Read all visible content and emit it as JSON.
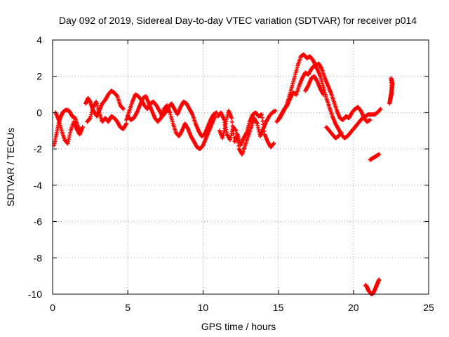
{
  "chart_data": {
    "type": "scatter",
    "title": "Day 092 of 2019, Sidereal Day-to-day VTEC variation (SDTVAR) for receiver p014",
    "xlabel": "GPS time / hours",
    "ylabel": "SDTVAR / TECUs",
    "xlim": [
      0,
      25
    ],
    "ylim": [
      -10,
      4
    ],
    "xticks": [
      0,
      5,
      10,
      15,
      20,
      25
    ],
    "yticks": [
      -10,
      -8,
      -6,
      -4,
      -2,
      0,
      2,
      4
    ],
    "grid": true,
    "marker": "+",
    "colors": {
      "points": "#ff0000",
      "axes": "#000000",
      "grid": "#a0a0a0"
    },
    "series": [
      {
        "name": "SDTVAR",
        "curves": [
          [
            [
              0.1,
              -1.8
            ],
            [
              0.25,
              -1.2
            ],
            [
              0.4,
              -0.6
            ],
            [
              0.55,
              -0.2
            ],
            [
              0.7,
              0.05
            ],
            [
              0.9,
              0.15
            ],
            [
              1.1,
              0.1
            ],
            [
              1.3,
              -0.2
            ],
            [
              1.5,
              -0.3
            ],
            [
              1.7,
              -0.8
            ],
            [
              1.9,
              -1.0
            ]
          ],
          [
            [
              0.2,
              0.0
            ],
            [
              0.4,
              -0.4
            ],
            [
              0.6,
              -1.0
            ],
            [
              0.8,
              -1.5
            ],
            [
              1.0,
              -1.7
            ],
            [
              1.2,
              -1.0
            ],
            [
              1.4,
              -0.5
            ],
            [
              1.6,
              -0.9
            ],
            [
              1.8,
              -1.2
            ],
            [
              2.0,
              -0.8
            ]
          ],
          [
            [
              2.2,
              0.5
            ],
            [
              2.35,
              0.8
            ],
            [
              2.5,
              0.6
            ],
            [
              2.65,
              0.2
            ],
            [
              2.8,
              0.0
            ],
            [
              2.95,
              -0.2
            ],
            [
              3.1,
              0.1
            ],
            [
              3.3,
              0.5
            ],
            [
              3.5,
              0.7
            ],
            [
              3.7,
              1.0
            ],
            [
              3.9,
              1.2
            ],
            [
              4.1,
              1.1
            ],
            [
              4.3,
              0.9
            ],
            [
              4.5,
              0.4
            ],
            [
              4.7,
              0.2
            ]
          ],
          [
            [
              2.3,
              -0.5
            ],
            [
              2.5,
              -0.3
            ],
            [
              2.7,
              0.3
            ],
            [
              2.9,
              0.6
            ],
            [
              3.1,
              0.0
            ],
            [
              3.3,
              -0.5
            ],
            [
              3.5,
              -0.3
            ],
            [
              3.7,
              -0.5
            ],
            [
              3.9,
              -0.2
            ],
            [
              4.1,
              -0.3
            ],
            [
              4.3,
              -0.5
            ],
            [
              4.5,
              -0.8
            ],
            [
              4.7,
              -0.9
            ],
            [
              4.9,
              -0.6
            ]
          ],
          [
            [
              4.9,
              -0.4
            ],
            [
              5.1,
              0.1
            ],
            [
              5.3,
              0.6
            ],
            [
              5.5,
              1.0
            ],
            [
              5.7,
              0.9
            ],
            [
              5.9,
              0.7
            ],
            [
              6.1,
              0.4
            ],
            [
              6.3,
              0.2
            ],
            [
              6.5,
              0.5
            ],
            [
              6.7,
              0.6
            ],
            [
              6.9,
              0.4
            ],
            [
              7.1,
              0.1
            ],
            [
              7.3,
              -0.2
            ],
            [
              7.5,
              0.0
            ],
            [
              7.7,
              0.3
            ],
            [
              7.9,
              0.5
            ],
            [
              8.1,
              0.2
            ],
            [
              8.3,
              -0.1
            ],
            [
              8.5,
              0.3
            ],
            [
              8.7,
              0.6
            ],
            [
              8.9,
              0.5
            ],
            [
              9.1,
              0.2
            ],
            [
              9.3,
              -0.1
            ],
            [
              9.5,
              -0.6
            ],
            [
              9.7,
              -1.0
            ],
            [
              9.9,
              -1.3
            ],
            [
              10.1,
              -1.2
            ],
            [
              10.3,
              -0.8
            ],
            [
              10.5,
              -0.4
            ],
            [
              10.7,
              -0.1
            ],
            [
              10.9,
              0.0
            ]
          ],
          [
            [
              5.0,
              -0.2
            ],
            [
              5.2,
              -0.4
            ],
            [
              5.4,
              -0.3
            ],
            [
              5.6,
              0.0
            ],
            [
              5.8,
              0.4
            ],
            [
              6.0,
              0.8
            ],
            [
              6.2,
              0.9
            ],
            [
              6.4,
              0.5
            ],
            [
              6.6,
              0.1
            ],
            [
              6.8,
              -0.3
            ],
            [
              7.0,
              -0.5
            ],
            [
              7.2,
              -0.3
            ],
            [
              7.4,
              0.2
            ],
            [
              7.6,
              0.4
            ],
            [
              7.8,
              0.0
            ],
            [
              8.0,
              -0.6
            ],
            [
              8.2,
              -1.1
            ],
            [
              8.4,
              -1.3
            ],
            [
              8.6,
              -1.0
            ],
            [
              8.8,
              -0.6
            ],
            [
              9.0,
              -0.9
            ],
            [
              9.2,
              -1.3
            ],
            [
              9.4,
              -1.6
            ],
            [
              9.6,
              -1.9
            ],
            [
              9.8,
              -2.0
            ],
            [
              10.0,
              -1.8
            ],
            [
              10.2,
              -1.4
            ],
            [
              10.4,
              -1.0
            ],
            [
              10.6,
              -0.6
            ],
            [
              10.8,
              -0.2
            ]
          ],
          [
            [
              11.0,
              -0.2
            ],
            [
              11.2,
              0.0
            ],
            [
              11.4,
              -0.4
            ],
            [
              11.6,
              -1.2
            ],
            [
              11.8,
              -1.5
            ],
            [
              12.0,
              -0.8
            ],
            [
              12.2,
              -1.0
            ],
            [
              12.4,
              -2.0
            ],
            [
              12.6,
              -2.3
            ],
            [
              12.8,
              -1.8
            ],
            [
              13.0,
              -1.3
            ],
            [
              13.2,
              -0.8
            ],
            [
              13.4,
              -0.3
            ],
            [
              13.6,
              -0.6
            ],
            [
              13.8,
              -1.3
            ],
            [
              14.0,
              -0.9
            ],
            [
              14.2,
              -0.5
            ],
            [
              14.4,
              -0.2
            ],
            [
              14.6,
              0.0
            ],
            [
              14.8,
              0.1
            ]
          ],
          [
            [
              11.1,
              -1.0
            ],
            [
              11.3,
              -1.4
            ],
            [
              11.5,
              -0.6
            ],
            [
              11.7,
              0.1
            ],
            [
              11.9,
              -0.3
            ],
            [
              12.1,
              -1.6
            ],
            [
              12.3,
              -1.2
            ],
            [
              12.5,
              -1.8
            ],
            [
              12.7,
              -1.4
            ],
            [
              12.9,
              -1.1
            ],
            [
              13.1,
              -0.5
            ],
            [
              13.3,
              -0.1
            ],
            [
              13.5,
              0.0
            ],
            [
              13.7,
              -0.2
            ],
            [
              13.9,
              -0.1
            ],
            [
              14.1,
              -1.2
            ],
            [
              14.3,
              -1.6
            ],
            [
              14.5,
              -1.9
            ],
            [
              14.7,
              -1.7
            ]
          ],
          [
            [
              14.9,
              -0.5
            ],
            [
              15.1,
              -0.3
            ],
            [
              15.3,
              0.0
            ],
            [
              15.5,
              0.3
            ],
            [
              15.7,
              0.8
            ],
            [
              15.9,
              1.4
            ],
            [
              16.1,
              2.0
            ],
            [
              16.3,
              2.6
            ],
            [
              16.5,
              3.1
            ],
            [
              16.7,
              3.2
            ],
            [
              16.9,
              3.0
            ],
            [
              17.1,
              3.1
            ],
            [
              17.3,
              2.9
            ],
            [
              17.5,
              2.6
            ],
            [
              17.7,
              2.7
            ],
            [
              17.9,
              2.4
            ],
            [
              18.1,
              1.9
            ],
            [
              18.3,
              1.5
            ],
            [
              18.5,
              1.1
            ],
            [
              18.7,
              0.6
            ],
            [
              18.9,
              0.1
            ],
            [
              19.1,
              -0.3
            ],
            [
              19.3,
              -0.4
            ],
            [
              19.5,
              -0.2
            ],
            [
              19.7,
              -0.3
            ],
            [
              19.9,
              0.0
            ],
            [
              20.1,
              0.2
            ],
            [
              20.3,
              0.3
            ],
            [
              20.5,
              0.1
            ],
            [
              20.7,
              -0.3
            ],
            [
              20.9,
              -0.5
            ],
            [
              21.1,
              -0.4
            ]
          ],
          [
            [
              15.0,
              -0.4
            ],
            [
              15.2,
              -0.1
            ],
            [
              15.4,
              0.2
            ],
            [
              15.6,
              0.4
            ],
            [
              15.8,
              0.8
            ],
            [
              16.0,
              1.1
            ],
            [
              16.2,
              1.0
            ],
            [
              16.4,
              1.5
            ],
            [
              16.6,
              1.9
            ],
            [
              16.8,
              2.2
            ],
            [
              17.0,
              2.1
            ],
            [
              17.2,
              2.4
            ],
            [
              17.4,
              2.6
            ],
            [
              17.6,
              2.4
            ],
            [
              17.8,
              2.0
            ],
            [
              18.0,
              1.4
            ],
            [
              18.2,
              0.8
            ],
            [
              18.4,
              0.3
            ],
            [
              18.6,
              -0.2
            ],
            [
              18.8,
              -0.6
            ],
            [
              19.0,
              -0.9
            ],
            [
              19.2,
              -1.2
            ],
            [
              19.4,
              -1.4
            ],
            [
              19.6,
              -1.3
            ],
            [
              19.8,
              -1.1
            ],
            [
              20.0,
              -0.9
            ],
            [
              20.2,
              -0.7
            ],
            [
              20.4,
              -0.5
            ],
            [
              20.6,
              -0.3
            ],
            [
              20.8,
              -0.2
            ],
            [
              21.0,
              -0.1
            ],
            [
              21.2,
              -0.1
            ],
            [
              21.4,
              -0.1
            ],
            [
              21.6,
              0.0
            ],
            [
              21.8,
              0.2
            ]
          ],
          [
            [
              16.8,
              1.2
            ],
            [
              17.0,
              1.5
            ],
            [
              17.2,
              1.9
            ],
            [
              17.4,
              2.0
            ],
            [
              17.6,
              1.7
            ],
            [
              17.8,
              1.3
            ],
            [
              18.0,
              1.0
            ]
          ],
          [
            [
              18.2,
              -0.8
            ],
            [
              18.4,
              -1.0
            ],
            [
              18.6,
              -1.2
            ],
            [
              18.8,
              -1.4
            ],
            [
              19.0,
              -1.3
            ],
            [
              19.2,
              -1.1
            ]
          ],
          [
            [
              21.1,
              -2.6
            ],
            [
              21.3,
              -2.5
            ],
            [
              21.5,
              -2.4
            ],
            [
              21.7,
              -2.3
            ]
          ],
          [
            [
              20.8,
              -9.5
            ],
            [
              20.9,
              -9.6
            ],
            [
              21.0,
              -9.8
            ],
            [
              21.1,
              -9.9
            ],
            [
              21.2,
              -10.0
            ],
            [
              21.3,
              -9.95
            ],
            [
              21.4,
              -9.8
            ],
            [
              21.5,
              -9.6
            ],
            [
              21.6,
              -9.4
            ],
            [
              21.7,
              -9.2
            ]
          ],
          [
            [
              22.4,
              0.5
            ],
            [
              22.45,
              0.8
            ],
            [
              22.5,
              1.0
            ],
            [
              22.55,
              1.3
            ],
            [
              22.6,
              1.6
            ],
            [
              22.5,
              1.9
            ],
            [
              22.55,
              1.1
            ],
            [
              22.45,
              0.7
            ]
          ]
        ]
      }
    ]
  }
}
